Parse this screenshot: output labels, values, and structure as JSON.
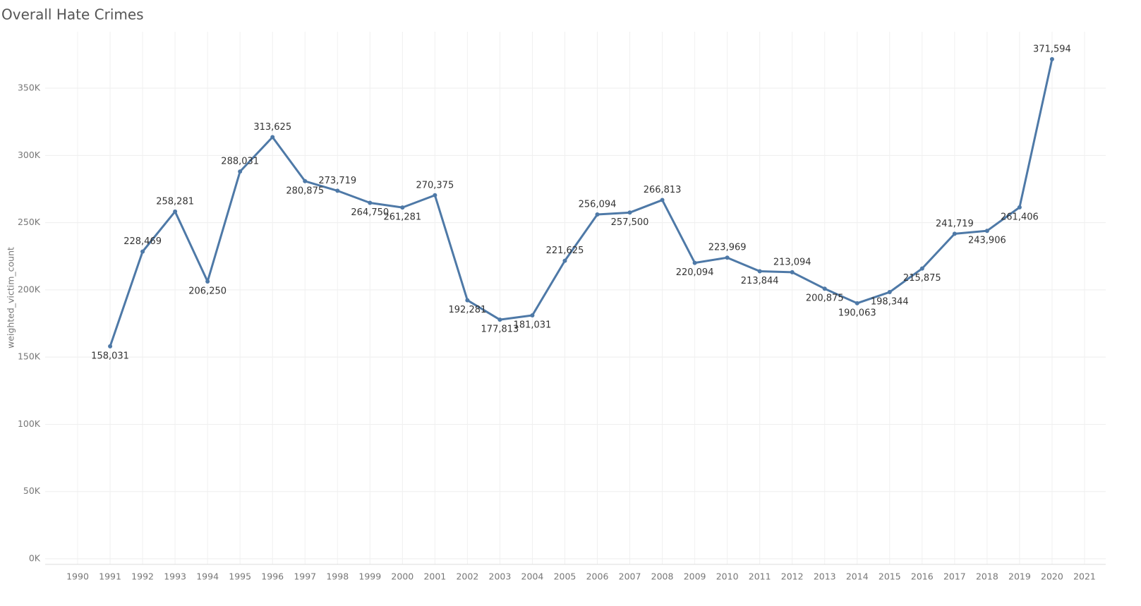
{
  "chart_data": {
    "type": "line",
    "title": "Overall Hate Crimes",
    "y_label": "weighted_victim_count",
    "x": [
      1991,
      1992,
      1993,
      1994,
      1995,
      1996,
      1997,
      1998,
      1999,
      2000,
      2001,
      2002,
      2003,
      2004,
      2005,
      2006,
      2007,
      2008,
      2009,
      2010,
      2011,
      2012,
      2013,
      2014,
      2015,
      2016,
      2017,
      2018,
      2019,
      2020
    ],
    "series": [
      {
        "name": "weighted_victim_count",
        "color": "#4e79a7",
        "values": [
          158031,
          228469,
          258281,
          206250,
          288031,
          313625,
          280875,
          273719,
          264750,
          261281,
          270375,
          192281,
          177813,
          181031,
          221625,
          256094,
          257500,
          266813,
          220094,
          223969,
          213844,
          213094,
          200875,
          190063,
          198344,
          215875,
          241719,
          243906,
          261406,
          371594
        ],
        "value_labels": [
          "158,031",
          "228,469",
          "258,281",
          "206,250",
          "288,031",
          "313,625",
          "280,875",
          "273,719",
          "264,750",
          "261,281",
          "270,375",
          "192,281",
          "177,813",
          "181,031",
          "221,625",
          "256,094",
          "257,500",
          "266,813",
          "220,094",
          "223,969",
          "213,844",
          "213,094",
          "200,875",
          "190,063",
          "198,344",
          "215,875",
          "241,719",
          "243,906",
          "261,406",
          "371,594"
        ]
      }
    ],
    "xlim": [
      1989,
      2022
    ],
    "xticks": [
      1990,
      1991,
      1992,
      1993,
      1994,
      1995,
      1996,
      1997,
      1998,
      1999,
      2000,
      2001,
      2002,
      2003,
      2004,
      2005,
      2006,
      2007,
      2008,
      2009,
      2010,
      2011,
      2012,
      2013,
      2014,
      2015,
      2016,
      2017,
      2018,
      2019,
      2020,
      2021
    ],
    "ylim": [
      0,
      392000
    ],
    "yticks": [
      {
        "value": 0,
        "label": "0K"
      },
      {
        "value": 50000,
        "label": "50K"
      },
      {
        "value": 100000,
        "label": "100K"
      },
      {
        "value": 150000,
        "label": "150K"
      },
      {
        "value": 200000,
        "label": "200K"
      },
      {
        "value": 250000,
        "label": "250K"
      },
      {
        "value": 300000,
        "label": "300K"
      },
      {
        "value": 350000,
        "label": "350K"
      }
    ],
    "grid": true
  }
}
